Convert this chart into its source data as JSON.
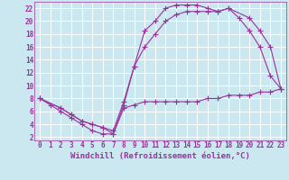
{
  "bg_color": "#cbe8f0",
  "grid_color": "#ffffff",
  "line_color": "#993399",
  "marker": "+",
  "markersize": 4,
  "linewidth": 0.8,
  "xlabel": "Windchill (Refroidissement éolien,°C)",
  "xlabel_fontsize": 6.5,
  "tick_fontsize": 5.5,
  "xlim": [
    -0.5,
    23.5
  ],
  "ylim": [
    1.5,
    23
  ],
  "xticks": [
    0,
    1,
    2,
    3,
    4,
    5,
    6,
    7,
    8,
    9,
    10,
    11,
    12,
    13,
    14,
    15,
    16,
    17,
    18,
    19,
    20,
    21,
    22,
    23
  ],
  "yticks": [
    2,
    4,
    6,
    8,
    10,
    12,
    14,
    16,
    18,
    20,
    22
  ],
  "curve1_x": [
    0,
    1,
    2,
    3,
    4,
    5,
    6,
    7,
    8,
    9,
    10,
    11,
    12,
    13,
    14,
    15,
    16,
    17,
    18,
    19,
    20,
    21,
    22,
    23
  ],
  "curve1_y": [
    8,
    7,
    6,
    5,
    4,
    3,
    2.5,
    2.5,
    7,
    13,
    18.5,
    20,
    22,
    22.5,
    22.5,
    22.5,
    22,
    21.5,
    22,
    20.5,
    18.5,
    16,
    11.5,
    9.5
  ],
  "curve2_x": [
    0,
    2,
    3,
    4,
    5,
    6,
    7,
    8,
    9,
    10,
    11,
    12,
    13,
    14,
    15,
    16,
    17,
    18,
    20,
    21,
    22,
    23
  ],
  "curve2_y": [
    8,
    6.5,
    5.5,
    4.5,
    4,
    3.5,
    3,
    7.5,
    13,
    16,
    18,
    20,
    21,
    21.5,
    21.5,
    21.5,
    21.5,
    22,
    20.5,
    18.5,
    16,
    9.5
  ],
  "curve3_x": [
    0,
    2,
    3,
    4,
    5,
    6,
    7,
    8,
    9,
    10,
    11,
    12,
    13,
    14,
    15,
    16,
    17,
    18,
    19,
    20,
    21,
    22,
    23
  ],
  "curve3_y": [
    8,
    6.5,
    5.5,
    4.5,
    4,
    3.5,
    2.5,
    6.5,
    7.0,
    7.5,
    7.5,
    7.5,
    7.5,
    7.5,
    7.5,
    8,
    8,
    8.5,
    8.5,
    8.5,
    9,
    9,
    9.5
  ]
}
